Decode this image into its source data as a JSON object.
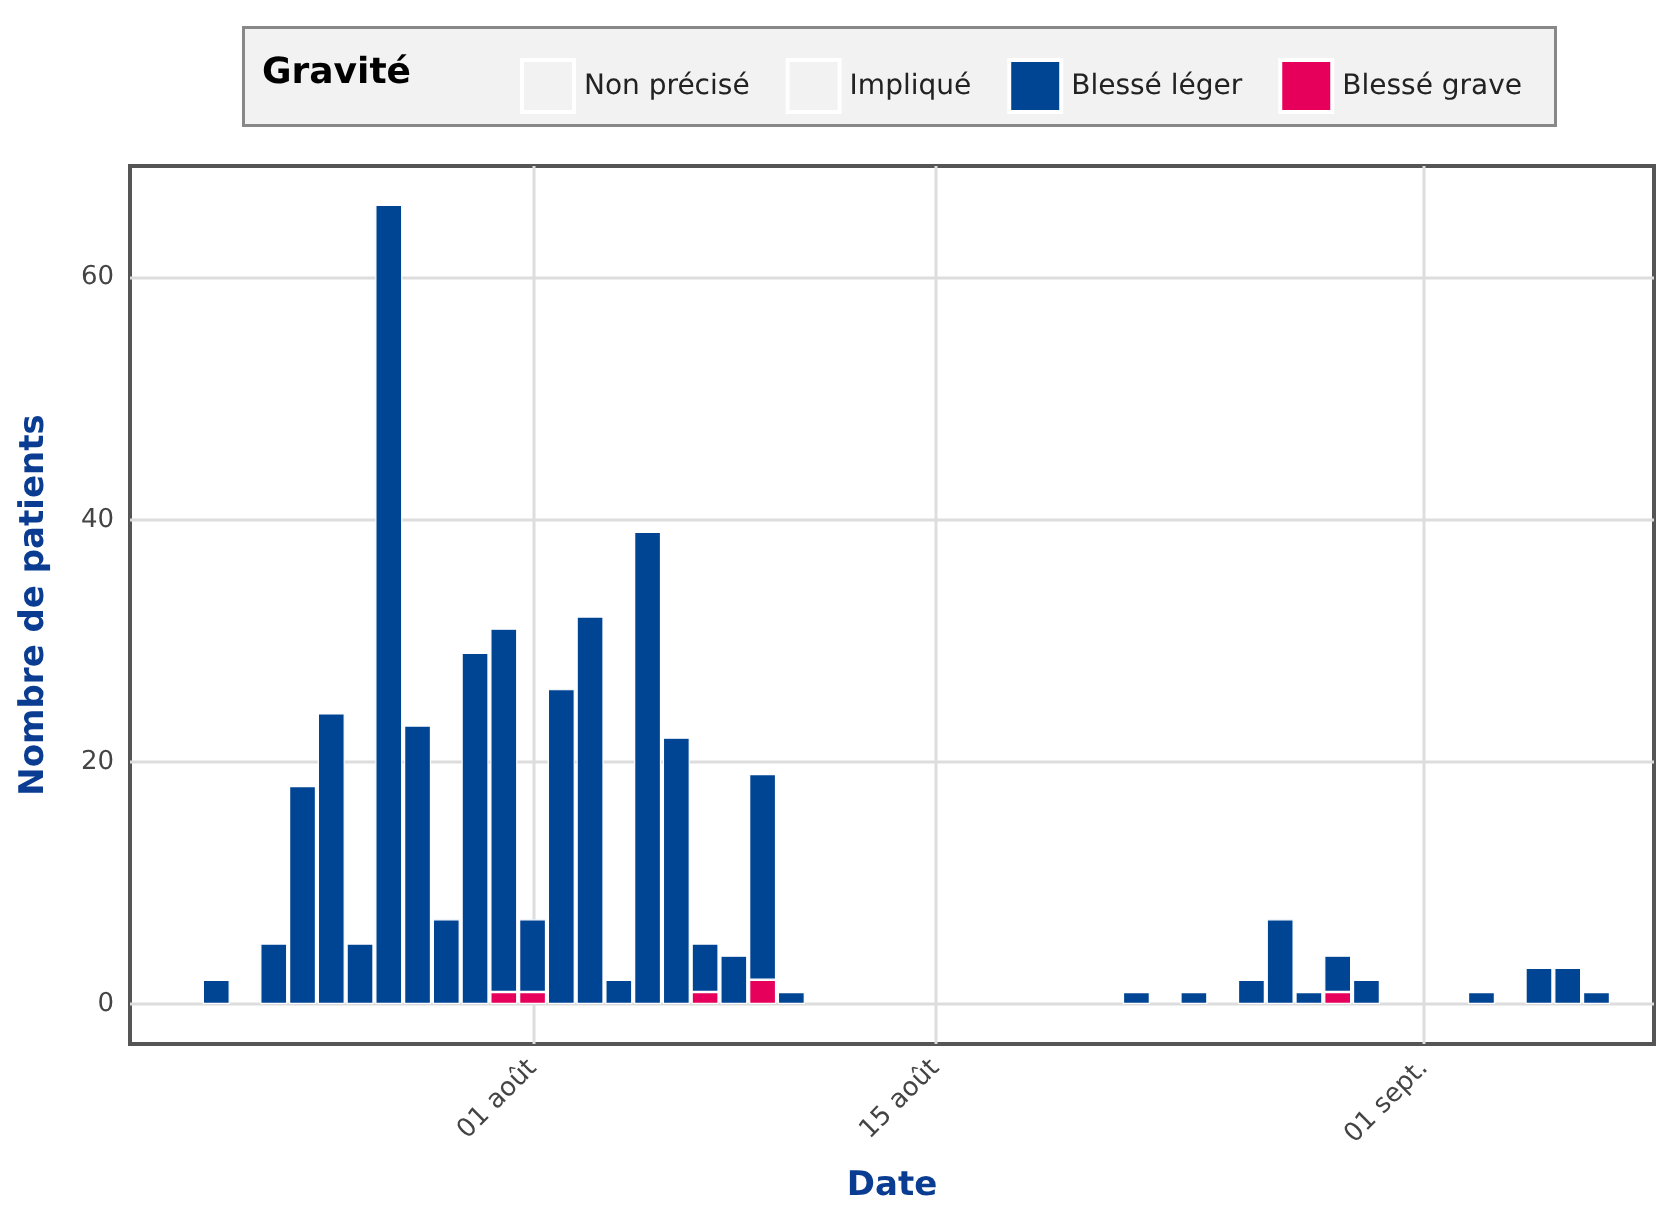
{
  "chart_data": {
    "type": "bar",
    "stacked": true,
    "xlabel": "Date",
    "ylabel": "Nombre de patients",
    "legend_title": "Gravité",
    "legend": "top",
    "grid": true,
    "x": [
      "--07-21",
      "--07-23",
      "--07-24",
      "--07-25",
      "--07-26",
      "--07-27",
      "--07-28",
      "--07-29",
      "--07-30",
      "--07-31",
      "--08-01",
      "--08-02",
      "--08-03",
      "--08-04",
      "--08-05",
      "--08-06",
      "--08-07",
      "--08-08",
      "--08-09",
      "--08-10",
      "--08-22",
      "--08-24",
      "--08-26",
      "--08-27",
      "--08-28",
      "--08-29",
      "--08-30",
      "--09-03",
      "--09-05",
      "--09-06",
      "--09-07"
    ],
    "xlim": [
      "--07-18",
      "--09-09"
    ],
    "xticks": [
      {
        "value": "--08-01",
        "label": "01 août"
      },
      {
        "value": "--08-15",
        "label": "15 août"
      },
      {
        "value": "--09-01",
        "label": "01 sept."
      }
    ],
    "ylim": [
      -3.3,
      69.2
    ],
    "yticks": [
      0,
      20,
      40,
      60
    ],
    "series": [
      {
        "name": "Non précisé",
        "color": "#f2f2f2",
        "values": [
          null,
          null,
          null,
          null,
          null,
          null,
          null,
          null,
          null,
          null,
          null,
          null,
          null,
          null,
          null,
          null,
          null,
          null,
          null,
          null,
          null,
          null,
          null,
          null,
          null,
          null,
          null,
          null,
          null,
          null,
          null
        ]
      },
      {
        "name": "Impliqué",
        "color": "#f2f2f2",
        "values": [
          null,
          null,
          null,
          null,
          null,
          null,
          null,
          null,
          null,
          null,
          null,
          null,
          null,
          null,
          null,
          null,
          null,
          null,
          null,
          null,
          null,
          null,
          null,
          null,
          null,
          null,
          null,
          null,
          null,
          null,
          null
        ]
      },
      {
        "name": "Blessé grave",
        "color": "#e6005c",
        "values": [
          null,
          null,
          null,
          null,
          null,
          null,
          null,
          null,
          null,
          1,
          1,
          null,
          null,
          null,
          null,
          null,
          1,
          null,
          2,
          null,
          null,
          null,
          null,
          null,
          null,
          1,
          null,
          null,
          null,
          null,
          null
        ]
      },
      {
        "name": "Blessé léger",
        "color": "#004494",
        "values": [
          2,
          5,
          18,
          24,
          5,
          66,
          23,
          7,
          29,
          30,
          6,
          26,
          32,
          2,
          39,
          22,
          4,
          4,
          17,
          1,
          1,
          1,
          2,
          7,
          1,
          3,
          2,
          1,
          3,
          3,
          1
        ]
      }
    ]
  }
}
